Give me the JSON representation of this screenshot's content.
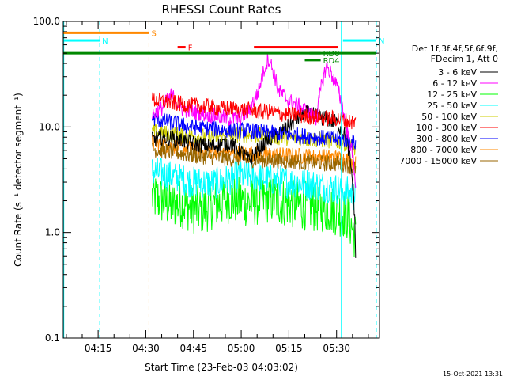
{
  "chart_data": {
    "type": "line",
    "title": "RHESSI Count Rates",
    "xlabel": "Start Time (23-Feb-03 04:03:02)",
    "ylabel": "Count Rate (s⁻¹ detector segment⁻¹)",
    "yscale": "log",
    "ylim": [
      0.1,
      100.0
    ],
    "xlim_minutes": [
      4.03,
      65.5
    ],
    "x_ticks": [
      {
        "minutes": 15,
        "label": "04:15"
      },
      {
        "minutes": 30,
        "label": "04:30"
      },
      {
        "minutes": 45,
        "label": "04:45"
      },
      {
        "minutes": 60,
        "label": "05:00"
      },
      {
        "minutes": 75,
        "label": "05:15"
      },
      {
        "minutes": 90,
        "label": "05:30"
      }
    ],
    "y_ticks": [
      {
        "value": 0.1,
        "label": "0.1"
      },
      {
        "value": 1.0,
        "label": "1.0"
      },
      {
        "value": 10.0,
        "label": "10.0"
      },
      {
        "value": 100.0,
        "label": "100.0"
      }
    ],
    "legend_header": [
      "Det 1f,3f,4f,5f,6f,9f,",
      "FDecim 1, Att 0"
    ],
    "series": [
      {
        "name": "3 - 6 keV",
        "color": "#000000",
        "x_range": [
          32,
          96
        ],
        "values": [
          7.5,
          8.0,
          7.8,
          7.5,
          7.0,
          6.8,
          6.5,
          6.8,
          7.0,
          6.0,
          4.8,
          6.2,
          7.5,
          8.5,
          10.0,
          12.0,
          13.5,
          12.5,
          12.0,
          11.0,
          8.0,
          0.6
        ]
      },
      {
        "name": "6 - 12 keV",
        "color": "#ff00ff",
        "x_range": [
          32,
          96
        ],
        "values": [
          13.0,
          15.0,
          20.0,
          15.0,
          14.0,
          13.5,
          13.0,
          12.5,
          12.0,
          12.0,
          14.0,
          22.0,
          45.0,
          22.0,
          18.0,
          16.0,
          14.0,
          12.0,
          38.0,
          25.0,
          10.0,
          3.0
        ]
      },
      {
        "name": "12 - 25 keV",
        "color": "#00ff00",
        "x_range": [
          32,
          96
        ],
        "values": [
          2.2,
          2.0,
          1.8,
          1.9,
          1.7,
          1.6,
          1.8,
          1.9,
          2.1,
          2.0,
          1.9,
          2.0,
          2.1,
          2.0,
          1.9,
          1.8,
          1.8,
          1.7,
          1.7,
          1.6,
          1.5,
          0.9
        ]
      },
      {
        "name": "25 - 50 keV",
        "color": "#00ffff",
        "x_range": [
          32,
          96
        ],
        "values": [
          3.8,
          3.6,
          3.4,
          3.2,
          3.0,
          3.0,
          2.9,
          3.0,
          3.2,
          3.4,
          3.5,
          3.4,
          3.2,
          3.1,
          3.0,
          3.0,
          2.9,
          2.8,
          2.7,
          2.6,
          2.5,
          2.2
        ]
      },
      {
        "name": "50 - 100 keV",
        "color": "#cccc00",
        "x_range": [
          32,
          96
        ],
        "values": [
          9.0,
          8.8,
          8.6,
          8.4,
          8.2,
          8.2,
          8.0,
          8.1,
          8.3,
          8.5,
          8.4,
          8.3,
          8.2,
          8.0,
          7.9,
          7.8,
          7.7,
          7.6,
          7.5,
          7.3,
          7.0,
          6.0
        ]
      },
      {
        "name": "100 - 300 keV",
        "color": "#ff0000",
        "x_range": [
          32,
          96
        ],
        "values": [
          18.0,
          17.5,
          17.0,
          16.5,
          16.0,
          15.8,
          15.5,
          15.0,
          15.0,
          14.5,
          14.5,
          14.0,
          14.0,
          13.5,
          13.0,
          13.0,
          12.5,
          12.5,
          12.0,
          12.0,
          11.5,
          11.0
        ]
      },
      {
        "name": "300 - 800 keV",
        "color": "#0000ff",
        "x_range": [
          32,
          96
        ],
        "values": [
          12.0,
          11.5,
          11.0,
          10.5,
          10.0,
          9.8,
          9.6,
          9.5,
          9.4,
          9.3,
          9.2,
          9.0,
          8.8,
          8.6,
          8.5,
          8.3,
          8.2,
          8.0,
          7.8,
          7.6,
          7.5,
          7.0
        ]
      },
      {
        "name": "800 - 7000 keV",
        "color": "#ff8800",
        "x_range": [
          32,
          96
        ],
        "values": [
          7.2,
          6.9,
          6.6,
          6.4,
          6.2,
          6.0,
          5.9,
          5.8,
          5.7,
          5.6,
          5.6,
          5.5,
          5.5,
          5.4,
          5.4,
          5.3,
          5.3,
          5.2,
          5.2,
          5.1,
          5.0,
          4.5
        ]
      },
      {
        "name": "7000 - 15000 keV",
        "color": "#996600",
        "x_range": [
          32,
          96
        ],
        "values": [
          6.2,
          6.0,
          5.8,
          5.6,
          5.4,
          5.3,
          5.2,
          5.1,
          5.0,
          5.0,
          4.9,
          4.9,
          4.8,
          4.8,
          4.7,
          4.7,
          4.6,
          4.6,
          4.5,
          4.5,
          4.4,
          4.0
        ]
      }
    ],
    "flag_bars": [
      {
        "label": "S",
        "color": "#ff8800",
        "start": 4.03,
        "end": 31.0,
        "value": 78
      },
      {
        "label": "N",
        "color": "#00ffff",
        "start": 4.03,
        "end": 15.5,
        "value": 66
      },
      {
        "label": "N",
        "color": "#00ffff",
        "start": 92.0,
        "end": 102.5,
        "value": 66
      },
      {
        "label": "F",
        "color": "#ff0000",
        "start": 40.0,
        "end": 42.5,
        "value": 57
      },
      {
        "label": "",
        "color": "#ff0000",
        "start": 64.0,
        "end": 90.5,
        "value": 57
      },
      {
        "label": "",
        "color": "#008800",
        "start": 4.03,
        "end": 102.5,
        "value": 50
      },
      {
        "label": "RD0",
        "color": "#008800",
        "start": 81.5,
        "end": 85.0,
        "value": 50
      },
      {
        "label": "RD4",
        "color": "#008800",
        "start": 80.0,
        "end": 85.0,
        "value": 43
      }
    ],
    "vertical_lines": [
      {
        "minutes": 4.2,
        "color": "#00ffff",
        "style": "solid"
      },
      {
        "minutes": 15.5,
        "color": "#00ffff",
        "style": "dashed"
      },
      {
        "minutes": 31.0,
        "color": "#ff8800",
        "style": "dashed"
      },
      {
        "minutes": 91.5,
        "color": "#00ffff",
        "style": "solid"
      },
      {
        "minutes": 102.5,
        "color": "#00ffff",
        "style": "dashed"
      }
    ],
    "footer_date": "15-Oct-2021 13:31"
  }
}
